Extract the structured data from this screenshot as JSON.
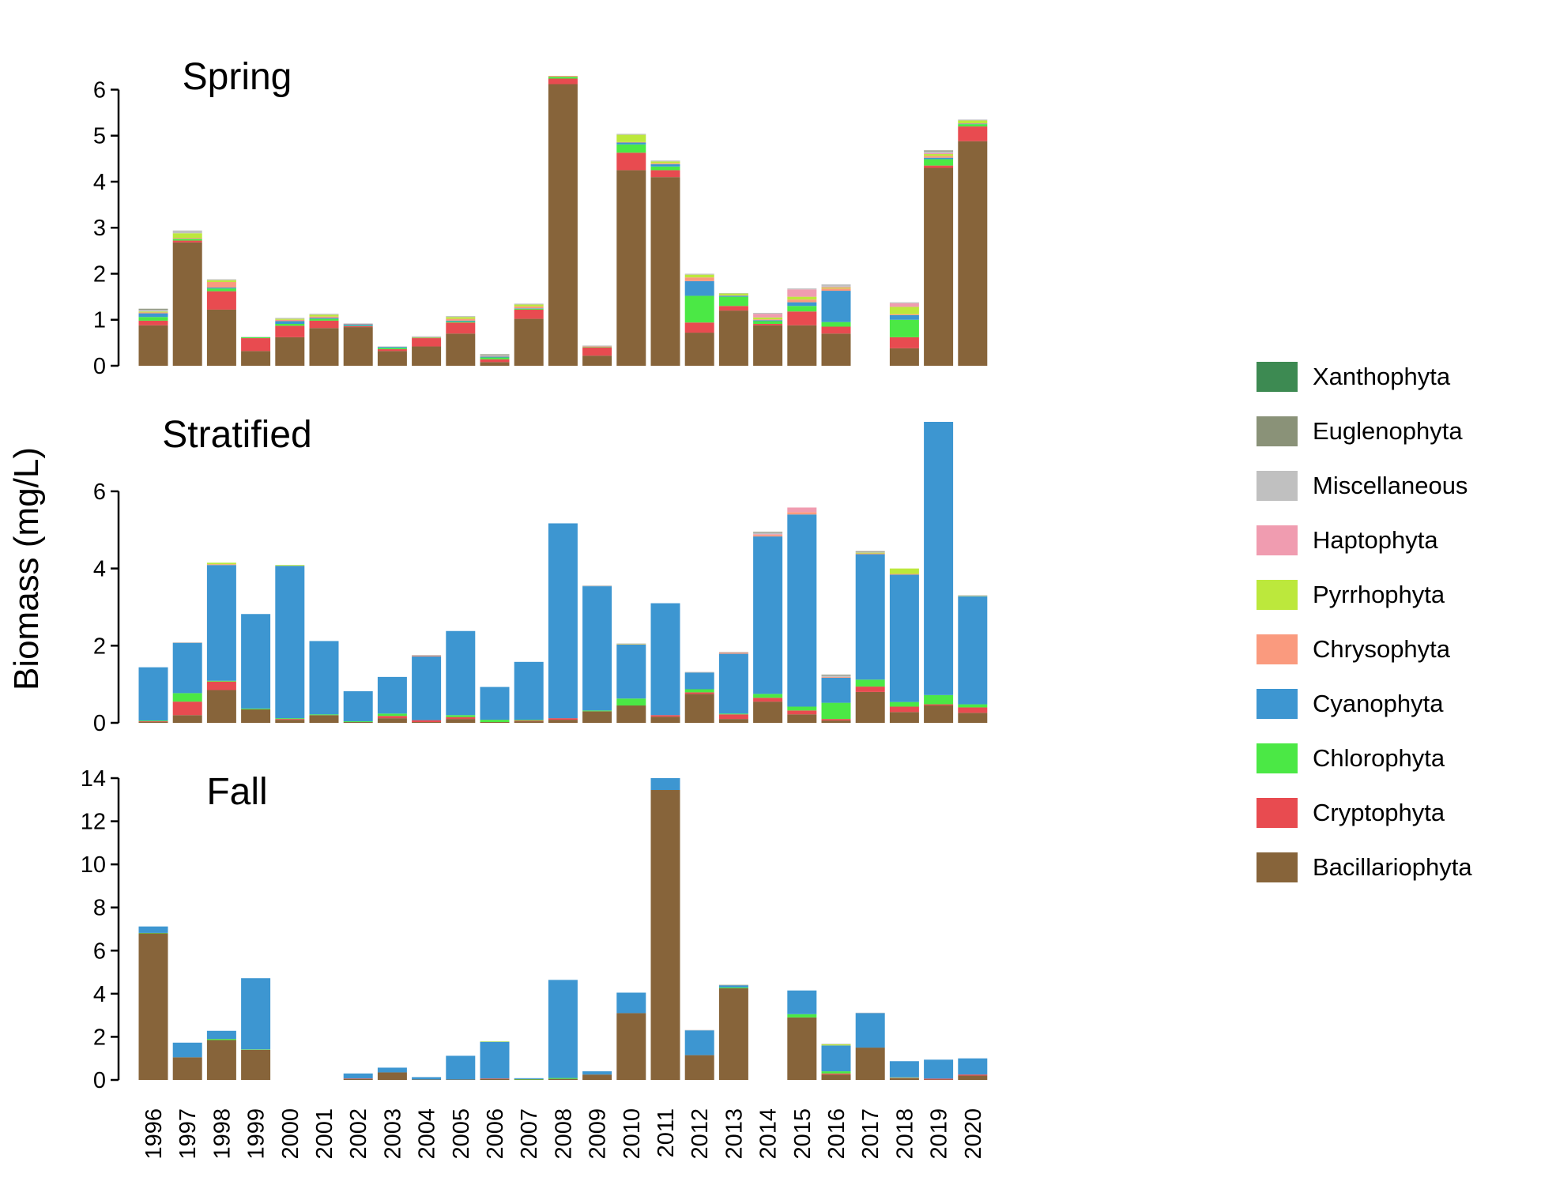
{
  "chart_data": {
    "type": "bar",
    "stacked": true,
    "ylabel": "Biomass (mg/L)",
    "categories": [
      "1996",
      "1997",
      "1998",
      "1999",
      "2000",
      "2001",
      "2002",
      "2003",
      "2004",
      "2005",
      "2006",
      "2007",
      "2008",
      "2009",
      "2010",
      "2011",
      "2012",
      "2013",
      "2014",
      "2015",
      "2016",
      "2017",
      "2018",
      "2019",
      "2020"
    ],
    "legend": {
      "placement": "right",
      "order": [
        "Xanthophyta",
        "Euglenophyta",
        "Miscellaneous",
        "Haptophyta",
        "Pyrrhophyta",
        "Chrysophyta",
        "Cyanophyta",
        "Chlorophyta",
        "Cryptophyta",
        "Bacillariophyta"
      ]
    },
    "colors": {
      "Bacillariophyta": "#87643a",
      "Cryptophyta": "#e84b50",
      "Chlorophyta": "#4be845",
      "Cyanophyta": "#3d96d1",
      "Chrysophyta": "#fa9a7e",
      "Pyrrhophyta": "#bce83c",
      "Haptophyta": "#f09cb0",
      "Miscellaneous": "#c0c0c0",
      "Euglenophyta": "#8a9278",
      "Xanthophyta": "#3d8a52"
    },
    "panels": [
      {
        "title": "Spring",
        "ylim": [
          0,
          6.3
        ],
        "yticks": [
          0,
          1,
          2,
          3,
          4,
          5,
          6
        ],
        "series": [
          {
            "name": "Bacillariophyta",
            "values": [
              0.88,
              2.68,
              1.22,
              0.32,
              0.62,
              0.82,
              0.84,
              0.32,
              0.42,
              0.7,
              0.08,
              1.02,
              6.12,
              0.22,
              4.25,
              4.1,
              0.72,
              1.2,
              0.88,
              0.88,
              0.7,
              null,
              0.38,
              4.3,
              4.88
            ]
          },
          {
            "name": "Cryptophyta",
            "values": [
              0.1,
              0.04,
              0.4,
              0.28,
              0.25,
              0.16,
              0.02,
              0.04,
              0.18,
              0.24,
              0.06,
              0.2,
              0.12,
              0.18,
              0.38,
              0.15,
              0.22,
              0.1,
              0.03,
              0.3,
              0.15,
              null,
              0.24,
              0.05,
              0.32
            ]
          },
          {
            "name": "Chlorophyta",
            "values": [
              0.08,
              0.04,
              0.06,
              0.02,
              0.04,
              0.04,
              0.01,
              0.03,
              0.01,
              0.02,
              0.04,
              0.02,
              0.04,
              0.01,
              0.18,
              0.08,
              0.58,
              0.2,
              0.06,
              0.12,
              0.1,
              null,
              0.38,
              0.14,
              0.05
            ]
          },
          {
            "name": "Cyanophyta",
            "values": [
              0.08,
              0.0,
              0.02,
              0.0,
              0.06,
              0.02,
              0.03,
              0.02,
              0.0,
              0.02,
              0.02,
              0.01,
              0.0,
              0.0,
              0.04,
              0.05,
              0.32,
              0.02,
              0.02,
              0.08,
              0.68,
              null,
              0.1,
              0.03,
              0.01
            ]
          },
          {
            "name": "Chrysophyta",
            "values": [
              0.02,
              0.02,
              0.12,
              0.0,
              0.03,
              0.03,
              0.01,
              0.0,
              0.01,
              0.04,
              0.01,
              0.04,
              0.02,
              0.01,
              0.01,
              0.02,
              0.08,
              0.01,
              0.02,
              0.06,
              0.05,
              null,
              0.02,
              0.04,
              0.01
            ]
          },
          {
            "name": "Pyrrhophyta",
            "values": [
              0.02,
              0.1,
              0.04,
              0.0,
              0.02,
              0.04,
              0.0,
              0.0,
              0.0,
              0.04,
              0.0,
              0.04,
              0.0,
              0.0,
              0.16,
              0.04,
              0.06,
              0.04,
              0.04,
              0.06,
              0.02,
              null,
              0.16,
              0.04,
              0.06
            ]
          },
          {
            "name": "Haptophyta",
            "values": [
              0.0,
              0.0,
              0.0,
              0.0,
              0.0,
              0.0,
              0.0,
              0.0,
              0.0,
              0.0,
              0.0,
              0.0,
              0.0,
              0.0,
              0.0,
              0.0,
              0.0,
              0.0,
              0.08,
              0.16,
              0.02,
              null,
              0.08,
              0.02,
              0.0
            ]
          },
          {
            "name": "Miscellaneous",
            "values": [
              0.04,
              0.06,
              0.02,
              0.01,
              0.02,
              0.02,
              0.01,
              0.01,
              0.02,
              0.02,
              0.02,
              0.02,
              0.01,
              0.02,
              0.02,
              0.02,
              0.02,
              0.01,
              0.02,
              0.02,
              0.05,
              null,
              0.02,
              0.04,
              0.02
            ]
          },
          {
            "name": "Euglenophyta",
            "values": [
              0.02,
              0.0,
              0.0,
              0.0,
              0.0,
              0.0,
              0.0,
              0.0,
              0.0,
              0.0,
              0.02,
              0.0,
              0.0,
              0.0,
              0.0,
              0.0,
              0.0,
              0.0,
              0.0,
              0.0,
              0.0,
              null,
              0.0,
              0.02,
              0.0
            ]
          },
          {
            "name": "Xanthophyta",
            "values": [
              0.0,
              0.0,
              0.0,
              0.0,
              0.0,
              0.0,
              0.0,
              0.0,
              0.0,
              0.0,
              0.0,
              0.0,
              0.02,
              0.0,
              0.0,
              0.0,
              0.0,
              0.0,
              0.0,
              0.0,
              0.0,
              null,
              0.0,
              0.0,
              0.0
            ]
          }
        ]
      },
      {
        "title": "Stratified",
        "ylim": [
          0,
          7.8
        ],
        "yticks": [
          0,
          2,
          4,
          6
        ],
        "series": [
          {
            "name": "Bacillariophyta",
            "values": [
              0.02,
              0.2,
              0.85,
              0.35,
              0.08,
              0.2,
              0.02,
              0.12,
              0.02,
              0.1,
              0.02,
              0.04,
              0.08,
              0.3,
              0.45,
              0.16,
              0.75,
              0.1,
              0.55,
              0.22,
              0.06,
              0.8,
              0.28,
              0.45,
              0.26
            ]
          },
          {
            "name": "Cryptophyta",
            "values": [
              0.02,
              0.35,
              0.22,
              0.0,
              0.02,
              0.0,
              0.0,
              0.06,
              0.05,
              0.05,
              0.0,
              0.02,
              0.04,
              0.0,
              0.0,
              0.04,
              0.04,
              0.12,
              0.1,
              0.1,
              0.04,
              0.14,
              0.14,
              0.03,
              0.14
            ]
          },
          {
            "name": "Chlorophyta",
            "values": [
              0.02,
              0.22,
              0.02,
              0.02,
              0.02,
              0.02,
              0.02,
              0.06,
              0.0,
              0.05,
              0.06,
              0.02,
              0.0,
              0.02,
              0.18,
              0.0,
              0.08,
              0.02,
              0.1,
              0.1,
              0.42,
              0.18,
              0.12,
              0.24,
              0.08
            ]
          },
          {
            "name": "Cyanophyta",
            "values": [
              1.38,
              1.3,
              3.0,
              2.45,
              3.95,
              1.9,
              0.78,
              0.95,
              1.65,
              2.18,
              0.85,
              1.5,
              5.05,
              3.22,
              1.4,
              2.9,
              0.43,
              1.55,
              4.08,
              4.98,
              0.65,
              3.25,
              3.3,
              7.08,
              2.8
            ]
          },
          {
            "name": "Chrysophyta",
            "values": [
              0.0,
              0.0,
              0.02,
              0.0,
              0.0,
              0.0,
              0.0,
              0.0,
              0.02,
              0.0,
              0.0,
              0.0,
              0.0,
              0.0,
              0.01,
              0.0,
              0.0,
              0.03,
              0.04,
              0.06,
              0.02,
              0.02,
              0.02,
              0.0,
              0.0
            ]
          },
          {
            "name": "Pyrrhophyta",
            "values": [
              0.0,
              0.0,
              0.04,
              0.0,
              0.02,
              0.0,
              0.0,
              0.0,
              0.0,
              0.0,
              0.0,
              0.0,
              0.0,
              0.0,
              0.01,
              0.0,
              0.0,
              0.0,
              0.0,
              0.0,
              0.0,
              0.02,
              0.14,
              0.0,
              0.01
            ]
          },
          {
            "name": "Haptophyta",
            "values": [
              0.0,
              0.0,
              0.0,
              0.0,
              0.0,
              0.0,
              0.0,
              0.0,
              0.0,
              0.0,
              0.0,
              0.0,
              0.0,
              0.0,
              0.0,
              0.0,
              0.0,
              0.0,
              0.02,
              0.12,
              0.0,
              0.0,
              0.0,
              0.0,
              0.0
            ]
          },
          {
            "name": "Miscellaneous",
            "values": [
              0.0,
              0.02,
              0.0,
              0.0,
              0.0,
              0.0,
              0.0,
              0.0,
              0.02,
              0.0,
              0.0,
              0.0,
              0.0,
              0.02,
              0.01,
              0.0,
              0.02,
              0.02,
              0.04,
              0.0,
              0.04,
              0.02,
              0.0,
              0.0,
              0.02
            ]
          },
          {
            "name": "Euglenophyta",
            "values": [
              0.0,
              0.0,
              0.0,
              0.0,
              0.0,
              0.0,
              0.0,
              0.0,
              0.0,
              0.0,
              0.0,
              0.0,
              0.0,
              0.0,
              0.0,
              0.0,
              0.0,
              0.0,
              0.02,
              0.0,
              0.02,
              0.02,
              0.0,
              0.02,
              0.0
            ]
          },
          {
            "name": "Xanthophyta",
            "values": [
              0,
              0,
              0,
              0,
              0,
              0,
              0,
              0,
              0,
              0,
              0,
              0,
              0,
              0,
              0,
              0,
              0,
              0,
              0,
              0,
              0,
              0,
              0,
              0,
              0
            ]
          }
        ]
      },
      {
        "title": "Fall",
        "ylim": [
          0,
          14
        ],
        "yticks": [
          0,
          2,
          4,
          6,
          8,
          10,
          12,
          14
        ],
        "series": [
          {
            "name": "Bacillariophyta",
            "values": [
              6.8,
              1.05,
              1.85,
              1.4,
              null,
              null,
              0.05,
              0.35,
              0.02,
              0.02,
              0.05,
              0.02,
              0.05,
              0.25,
              3.1,
              13.45,
              1.15,
              4.25,
              null,
              2.9,
              0.25,
              1.5,
              0.08,
              0.02,
              0.2
            ]
          },
          {
            "name": "Cryptophyta",
            "values": [
              0.0,
              0.0,
              0.0,
              0.0,
              null,
              null,
              0.02,
              0.0,
              0.0,
              0.0,
              0.02,
              0.0,
              0.0,
              0.0,
              0.0,
              0.0,
              0.0,
              0.0,
              null,
              0.0,
              0.05,
              0.0,
              0.02,
              0.04,
              0.05
            ]
          },
          {
            "name": "Chlorophyta",
            "values": [
              0.02,
              0.0,
              0.05,
              0.02,
              null,
              null,
              0.0,
              0.0,
              0.0,
              0.0,
              0.0,
              0.02,
              0.04,
              0.0,
              0.0,
              0.0,
              0.0,
              0.04,
              null,
              0.15,
              0.1,
              0.0,
              0.02,
              0.0,
              0.0
            ]
          },
          {
            "name": "Cyanophyta",
            "values": [
              0.3,
              0.68,
              0.38,
              3.3,
              null,
              null,
              0.23,
              0.22,
              0.11,
              1.1,
              1.7,
              0.04,
              4.55,
              0.15,
              0.95,
              0.55,
              1.15,
              0.1,
              null,
              1.1,
              1.2,
              1.6,
              0.75,
              0.88,
              0.75
            ]
          },
          {
            "name": "Chrysophyta",
            "values": [
              0,
              0,
              0,
              0,
              null,
              null,
              0,
              0,
              0,
              0,
              0,
              0,
              0,
              0,
              0,
              0,
              0,
              0,
              null,
              0,
              0,
              0,
              0,
              0,
              0
            ]
          },
          {
            "name": "Pyrrhophyta",
            "values": [
              0.0,
              0.0,
              0.0,
              0.0,
              null,
              null,
              0.0,
              0.0,
              0.0,
              0.0,
              0.02,
              0.0,
              0.0,
              0.0,
              0.0,
              0.0,
              0.0,
              0.0,
              null,
              0.0,
              0.05,
              0.0,
              0.0,
              0.0,
              0.0
            ]
          },
          {
            "name": "Haptophyta",
            "values": [
              0,
              0,
              0,
              0,
              null,
              null,
              0,
              0,
              0,
              0,
              0,
              0,
              0,
              0,
              0,
              0,
              0,
              0,
              null,
              0,
              0,
              0,
              0,
              0,
              0
            ]
          },
          {
            "name": "Miscellaneous",
            "values": [
              0.0,
              0.0,
              0.0,
              0.0,
              null,
              null,
              0.0,
              0.0,
              0.0,
              0.0,
              0.0,
              0.0,
              0.0,
              0.0,
              0.0,
              0.0,
              0.02,
              0.0,
              null,
              0.0,
              0.03,
              0.02,
              0.0,
              0.0,
              0.0
            ]
          },
          {
            "name": "Euglenophyta",
            "values": [
              0.0,
              0.0,
              0.0,
              0.0,
              null,
              null,
              0.0,
              0.0,
              0.0,
              0.0,
              0.0,
              0.0,
              0.0,
              0.0,
              0.0,
              0.0,
              0.0,
              0.02,
              null,
              0.0,
              0.0,
              0.0,
              0.0,
              0.0,
              0.0
            ]
          },
          {
            "name": "Xanthophyta",
            "values": [
              0,
              0,
              0,
              0,
              null,
              null,
              0,
              0,
              0,
              0,
              0,
              0,
              0,
              0,
              0,
              0,
              0,
              0,
              null,
              0,
              0,
              0,
              0,
              0,
              0
            ]
          }
        ]
      }
    ]
  }
}
